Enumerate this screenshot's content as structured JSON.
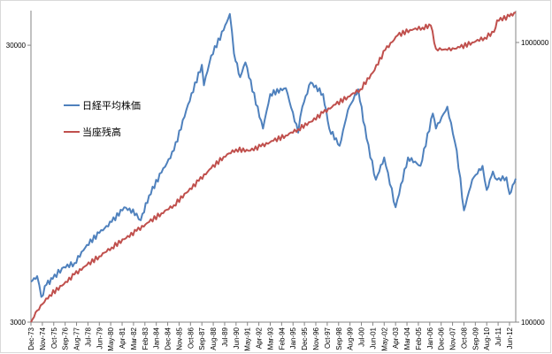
{
  "chart_data": {
    "type": "line",
    "title": "",
    "xlabel": "",
    "ylabel": "",
    "x_tick_labels": [
      "Dec-73",
      "Nov-74",
      "Oct-75",
      "Sep-76",
      "Aug-77",
      "Jul-78",
      "Jun-79",
      "May-80",
      "Apr-81",
      "Mar-82",
      "Feb-83",
      "Jan-84",
      "Dec-84",
      "Nov-85",
      "Oct-86",
      "Sep-87",
      "Aug-88",
      "Jul-89",
      "Jun-90",
      "May-91",
      "Apr-92",
      "Mar-93",
      "Feb-94",
      "Jan-95",
      "Dec-95",
      "Nov-96",
      "Oct-97",
      "Sep-98",
      "Aug-99",
      "Jul-00",
      "Jun-01",
      "May-02",
      "Apr-03",
      "Mar-04",
      "Feb-05",
      "Jan-06",
      "Dec-06",
      "Nov-07",
      "Oct-08",
      "Sep-09",
      "Aug-10",
      "Jul-11",
      "Jun-12"
    ],
    "y_left": {
      "scale": "log",
      "ylim": [
        3000,
        40000
      ],
      "tick_labels": [
        "3000",
        "30000"
      ]
    },
    "y_right": {
      "scale": "log",
      "ylim": [
        100000,
        1300000
      ],
      "tick_labels": [
        "100000",
        "1000000"
      ]
    },
    "grid": false,
    "legend_position": "left",
    "series": [
      {
        "name": "日経平均株価",
        "color": "#4f81bd",
        "axis": "left",
        "points": [
          [
            "1973-12",
            4200
          ],
          [
            "1974-06",
            4400
          ],
          [
            "1974-10",
            3700
          ],
          [
            "1975-03",
            4100
          ],
          [
            "1975-09",
            4300
          ],
          [
            "1976-06",
            4700
          ],
          [
            "1977-06",
            4900
          ],
          [
            "1978-06",
            5700
          ],
          [
            "1979-06",
            6300
          ],
          [
            "1980-06",
            6900
          ],
          [
            "1981-06",
            7800
          ],
          [
            "1982-06",
            7400
          ],
          [
            "1982-10",
            7000
          ],
          [
            "1983-06",
            8600
          ],
          [
            "1984-06",
            10400
          ],
          [
            "1985-06",
            12500
          ],
          [
            "1986-06",
            17500
          ],
          [
            "1987-09",
            25500
          ],
          [
            "1987-11",
            21500
          ],
          [
            "1988-06",
            27500
          ],
          [
            "1989-06",
            34000
          ],
          [
            "1989-12",
            38900
          ],
          [
            "1990-04",
            28000
          ],
          [
            "1990-10",
            23000
          ],
          [
            "1991-03",
            26000
          ],
          [
            "1992-08",
            15000
          ],
          [
            "1993-03",
            20000
          ],
          [
            "1994-06",
            21000
          ],
          [
            "1995-06",
            14500
          ],
          [
            "1995-10",
            18000
          ],
          [
            "1996-06",
            22000
          ],
          [
            "1997-06",
            20000
          ],
          [
            "1997-12",
            15000
          ],
          [
            "1998-10",
            13000
          ],
          [
            "1999-06",
            17500
          ],
          [
            "2000-04",
            20800
          ],
          [
            "2000-12",
            13800
          ],
          [
            "2001-09",
            9800
          ],
          [
            "2002-05",
            11800
          ],
          [
            "2003-04",
            7800
          ],
          [
            "2004-04",
            11800
          ],
          [
            "2005-04",
            11000
          ],
          [
            "2006-04",
            17000
          ],
          [
            "2006-07",
            15000
          ],
          [
            "2007-06",
            18000
          ],
          [
            "2008-03",
            12500
          ],
          [
            "2008-10",
            7600
          ],
          [
            "2009-06",
            9800
          ],
          [
            "2010-04",
            11000
          ],
          [
            "2010-08",
            9000
          ],
          [
            "2011-02",
            10500
          ],
          [
            "2011-06",
            9800
          ],
          [
            "2012-03",
            10000
          ],
          [
            "2012-06",
            8700
          ],
          [
            "2012-12",
            9900
          ]
        ]
      },
      {
        "name": "当座残高",
        "color": "#c0504d",
        "axis": "right",
        "points": [
          [
            "1973-12",
            100000
          ],
          [
            "1974-06",
            110000
          ],
          [
            "1975-06",
            125000
          ],
          [
            "1976-06",
            135000
          ],
          [
            "1977-06",
            148000
          ],
          [
            "1978-06",
            160000
          ],
          [
            "1979-06",
            172000
          ],
          [
            "1980-06",
            185000
          ],
          [
            "1981-06",
            198000
          ],
          [
            "1982-06",
            212000
          ],
          [
            "1983-06",
            228000
          ],
          [
            "1984-06",
            245000
          ],
          [
            "1985-06",
            262000
          ],
          [
            "1986-06",
            290000
          ],
          [
            "1987-06",
            320000
          ],
          [
            "1988-06",
            355000
          ],
          [
            "1989-06",
            390000
          ],
          [
            "1990-06",
            415000
          ],
          [
            "1991-06",
            410000
          ],
          [
            "1992-06",
            425000
          ],
          [
            "1993-06",
            445000
          ],
          [
            "1994-06",
            465000
          ],
          [
            "1995-06",
            490000
          ],
          [
            "1996-06",
            520000
          ],
          [
            "1997-06",
            560000
          ],
          [
            "1998-06",
            600000
          ],
          [
            "1999-06",
            640000
          ],
          [
            "2000-06",
            680000
          ],
          [
            "2001-06",
            780000
          ],
          [
            "2002-06",
            940000
          ],
          [
            "2003-06",
            1060000
          ],
          [
            "2004-06",
            1110000
          ],
          [
            "2005-06",
            1130000
          ],
          [
            "2006-02",
            1150000
          ],
          [
            "2006-07",
            950000
          ],
          [
            "2007-06",
            940000
          ],
          [
            "2008-06",
            960000
          ],
          [
            "2009-06",
            1000000
          ],
          [
            "2010-06",
            1040000
          ],
          [
            "2011-03",
            1090000
          ],
          [
            "2011-06",
            1200000
          ],
          [
            "2012-06",
            1240000
          ],
          [
            "2012-12",
            1280000
          ]
        ]
      }
    ]
  }
}
